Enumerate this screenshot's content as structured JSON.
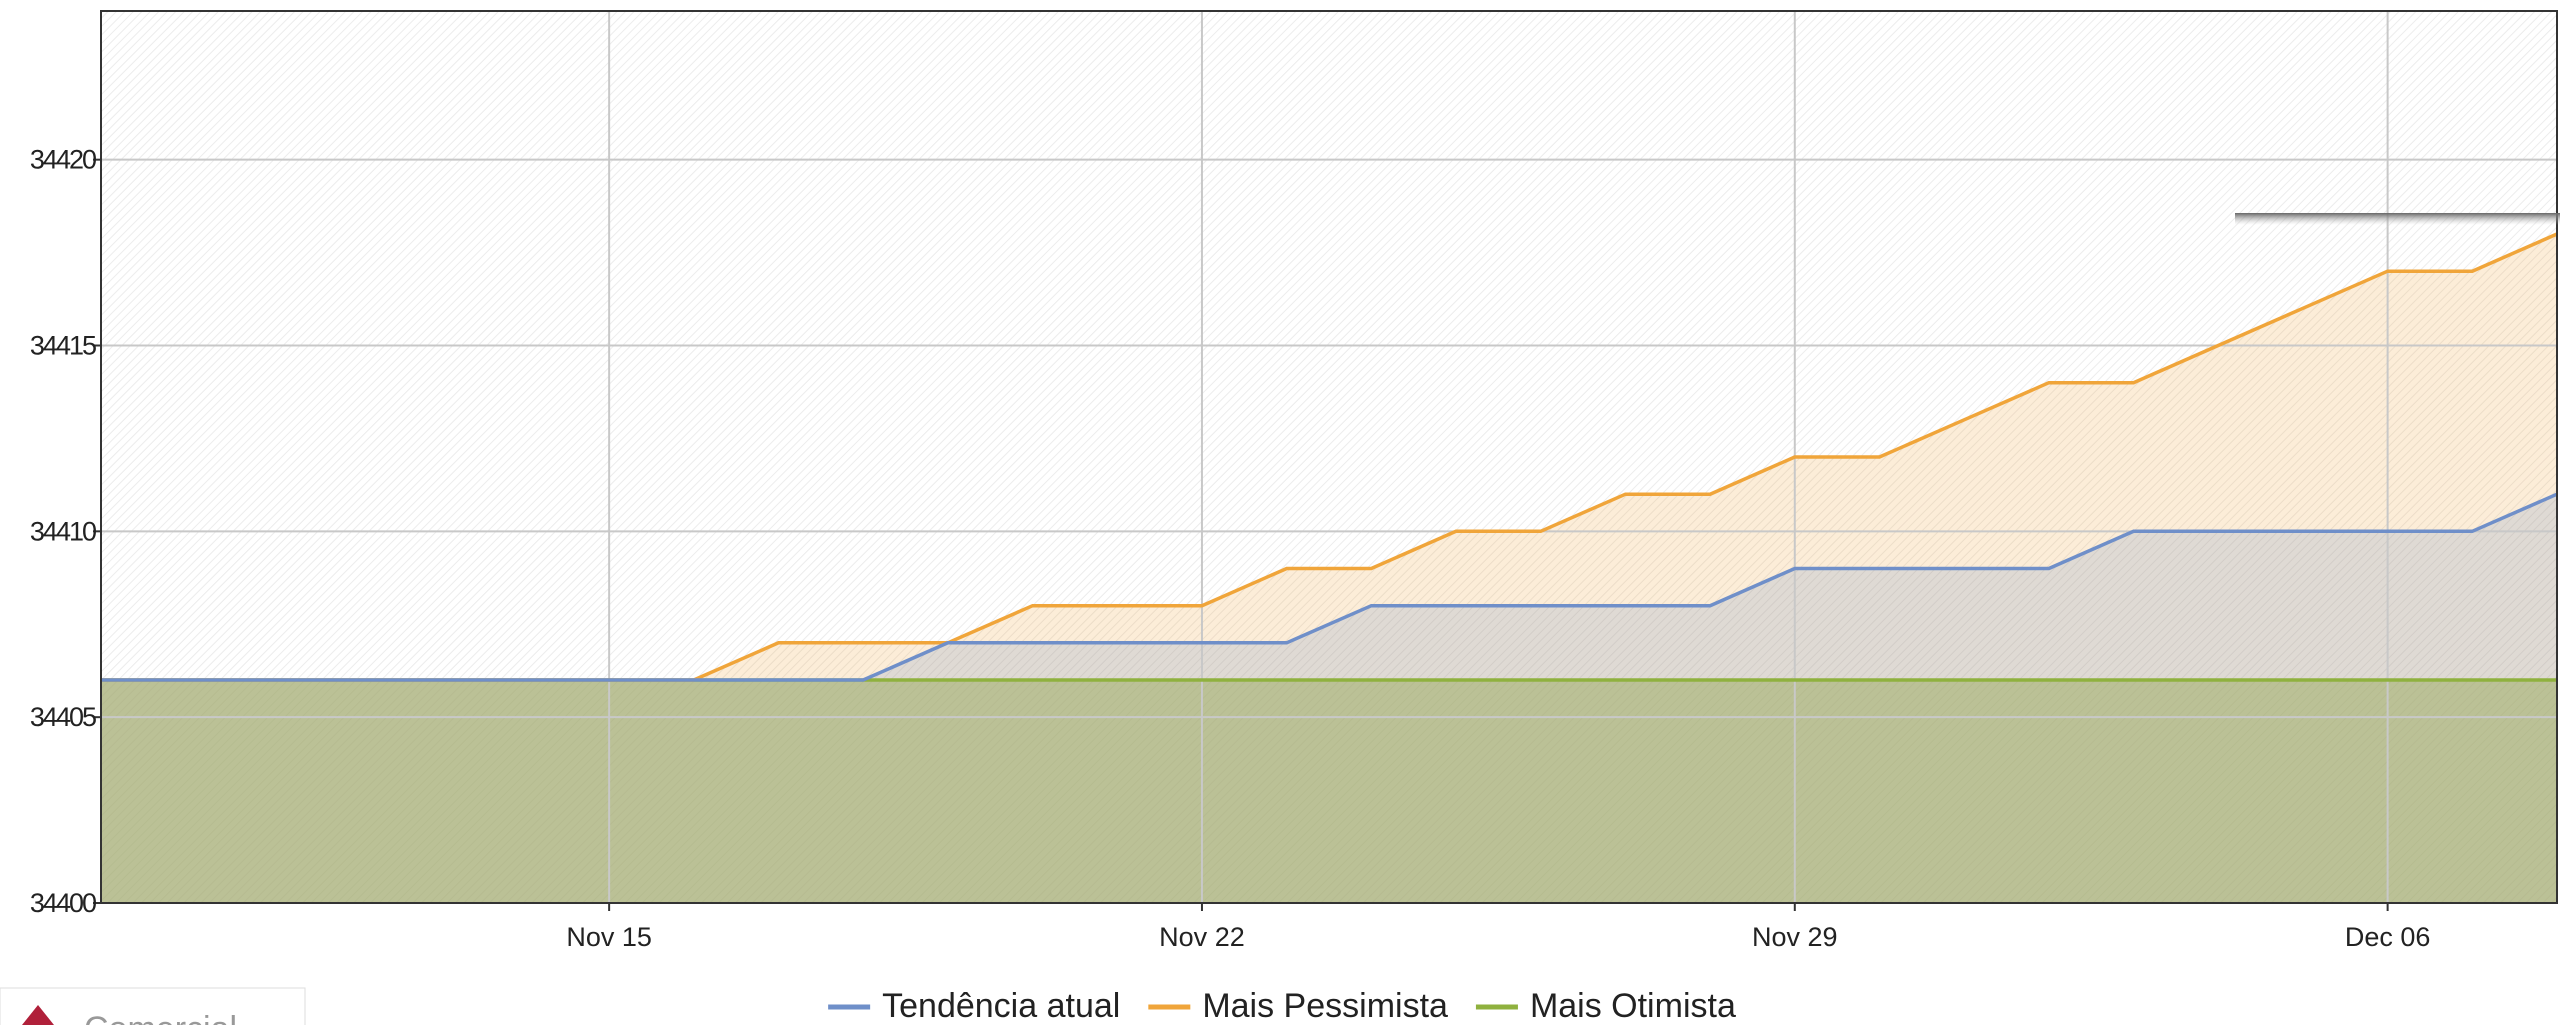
{
  "chart_data": {
    "type": "area",
    "x": [
      "11-09",
      "11-10",
      "11-11",
      "11-12",
      "11-13",
      "11-14",
      "11-15",
      "11-16",
      "11-17",
      "11-18",
      "11-19",
      "11-20",
      "11-21",
      "11-22",
      "11-23",
      "11-24",
      "11-25",
      "11-26",
      "11-27",
      "11-28",
      "11-29",
      "11-30",
      "12-01",
      "12-02",
      "12-03",
      "12-04",
      "12-05",
      "12-06",
      "12-07",
      "12-08"
    ],
    "series": [
      {
        "name": "Tendência atual",
        "color": "#6f8fc9",
        "values": [
          34406,
          34406,
          34406,
          34406,
          34406,
          34406,
          34406,
          34406,
          34406,
          34406,
          34407,
          34407,
          34407,
          34407,
          34407,
          34408,
          34408,
          34408,
          34408,
          34408,
          34409,
          34409,
          34409,
          34409,
          34410,
          34410,
          34410,
          34410,
          34410,
          34411
        ]
      },
      {
        "name": "Mais Pessimista",
        "color": "#f0a53a",
        "values": [
          34406,
          34406,
          34406,
          34406,
          34406,
          34406,
          34406,
          34406,
          34407,
          34407,
          34407,
          34408,
          34408,
          34408,
          34409,
          34409,
          34410,
          34410,
          34411,
          34411,
          34412,
          34412,
          34413,
          34414,
          34414,
          34415,
          34416,
          34417,
          34417,
          34418
        ]
      },
      {
        "name": "Mais Otimista",
        "color": "#8fb13e",
        "values": [
          34406,
          34406,
          34406,
          34406,
          34406,
          34406,
          34406,
          34406,
          34406,
          34406,
          34406,
          34406,
          34406,
          34406,
          34406,
          34406,
          34406,
          34406,
          34406,
          34406,
          34406,
          34406,
          34406,
          34406,
          34406,
          34406,
          34406,
          34406,
          34406,
          34406
        ]
      }
    ],
    "xlim": [
      "11-09",
      "12-08"
    ],
    "xticks": [
      {
        "value": "11-15",
        "label": "Nov 15"
      },
      {
        "value": "11-22",
        "label": "Nov 22"
      },
      {
        "value": "11-29",
        "label": "Nov 29"
      },
      {
        "value": "12-06",
        "label": "Dec 06"
      }
    ],
    "ylim": [
      34400,
      34424
    ],
    "yticks": [
      34400,
      34405,
      34410,
      34415,
      34420
    ],
    "grid": true,
    "legend": "bottom",
    "annotation": "Comercial"
  }
}
